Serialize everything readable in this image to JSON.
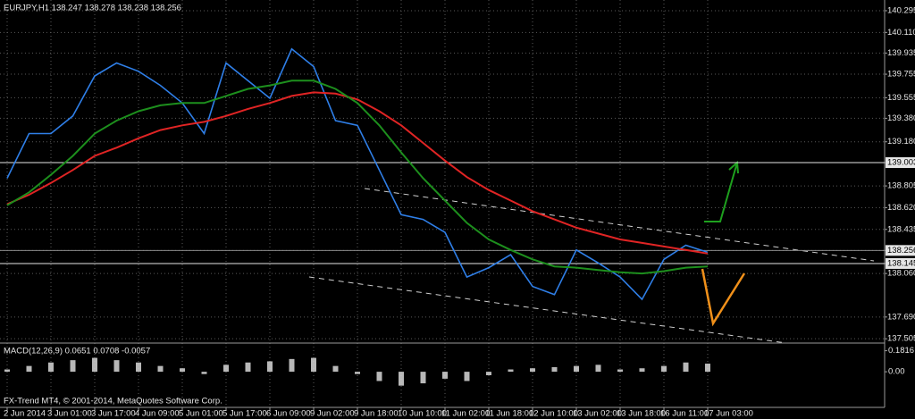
{
  "chart_data": [
    {
      "type": "line",
      "title": "EURJPY,H1  138.247 138.278 138.238 138.256",
      "annotation": "FX-Trend MT4, © 2001-2014, MetaQuotes Software Corp.",
      "categories": [
        "2 Jun 2014",
        null,
        "3 Jun 01:00",
        null,
        "3 Jun 17:00",
        null,
        "4 Jun 09:00",
        null,
        "5 Jun 01:00",
        null,
        "5 Jun 17:00",
        null,
        "6 Jun 09:00",
        null,
        "9 Jun 02:00",
        null,
        "9 Jun 18:00",
        null,
        "10 Jun 10:00",
        null,
        "11 Jun 02:00",
        null,
        "11 Jun 18:00",
        null,
        "12 Jun 10:00",
        null,
        "13 Jun 02:00",
        null,
        "13 Jun 18:00",
        null,
        "16 Jun 11:00",
        null,
        "17 Jun 03:00"
      ],
      "series": [
        {
          "color": "#2f7fe8",
          "values": [
            138.87,
            139.25,
            139.25,
            139.4,
            139.74,
            139.85,
            139.78,
            139.66,
            139.51,
            139.25,
            139.85,
            139.7,
            139.55,
            139.97,
            139.82,
            139.36,
            139.32,
            138.94,
            138.56,
            138.52,
            138.41,
            138.03,
            138.11,
            138.22,
            137.95,
            137.88,
            138.26,
            138.15,
            138.03,
            137.84,
            138.18,
            138.3,
            138.24
          ]
        },
        {
          "color": "#e02424",
          "values": [
            138.65,
            138.73,
            138.83,
            138.94,
            139.06,
            139.13,
            139.21,
            139.28,
            139.32,
            139.35,
            139.4,
            139.46,
            139.51,
            139.57,
            139.6,
            139.59,
            139.54,
            139.44,
            139.32,
            139.17,
            139.02,
            138.88,
            138.77,
            138.68,
            138.59,
            138.52,
            138.45,
            138.4,
            138.35,
            138.32,
            138.29,
            138.26,
            138.23
          ]
        },
        {
          "color": "#1d8f1d",
          "values": [
            138.64,
            138.75,
            138.9,
            139.06,
            139.25,
            139.36,
            139.44,
            139.49,
            139.51,
            139.51,
            139.57,
            139.63,
            139.66,
            139.7,
            139.7,
            139.63,
            139.51,
            139.32,
            139.09,
            138.87,
            138.68,
            138.49,
            138.35,
            138.26,
            138.18,
            138.12,
            138.11,
            138.09,
            138.07,
            138.06,
            138.08,
            138.11,
            138.12
          ]
        }
      ],
      "levels": [
        139.003,
        138.256,
        138.145
      ],
      "ylim": [
        137.476,
        140.386
      ],
      "yticks": [
        {
          "value": 140.295,
          "label": "140.295"
        },
        {
          "value": 140.11,
          "label": "140.110"
        },
        {
          "value": 139.935,
          "label": "139.935"
        },
        {
          "value": 139.755,
          "label": "139.755"
        },
        {
          "value": 139.555,
          "label": "139.555"
        },
        {
          "value": 139.38,
          "label": "139.380"
        },
        {
          "value": 139.18,
          "label": "139.180"
        },
        {
          "value": 139.003,
          "label": "139.003"
        },
        {
          "value": 138.805,
          "label": "138.805"
        },
        {
          "value": 138.62,
          "label": "138.620"
        },
        {
          "value": 138.435,
          "label": "138.435"
        },
        {
          "value": 138.256,
          "label": "138.256"
        },
        {
          "value": 138.145,
          "label": "138.145"
        },
        {
          "value": 138.06,
          "label": "138.060"
        },
        {
          "value": 137.69,
          "label": "137.690"
        },
        {
          "value": 137.505,
          "label": "137.505"
        }
      ],
      "grid": true
    },
    {
      "type": "bar",
      "title": "MACD(12,26,9) 0.0651 0.0708 -0.0057",
      "color": "#d8d8d8",
      "values": [
        0.02,
        0.05,
        0.08,
        0.1,
        0.12,
        0.1,
        0.08,
        0.05,
        0.03,
        -0.02,
        0.06,
        0.08,
        0.09,
        0.11,
        0.12,
        0.05,
        -0.02,
        -0.08,
        -0.12,
        -0.1,
        -0.06,
        -0.08,
        -0.03,
        0.02,
        0.03,
        0.04,
        0.05,
        0.06,
        0.02,
        0.03,
        0.05,
        0.08,
        0.07
      ],
      "ylim": [
        -0.3,
        0.24
      ],
      "yticks": [
        0.1816,
        {
          "value": 0,
          "label": "0.00"
        }
      ]
    }
  ]
}
